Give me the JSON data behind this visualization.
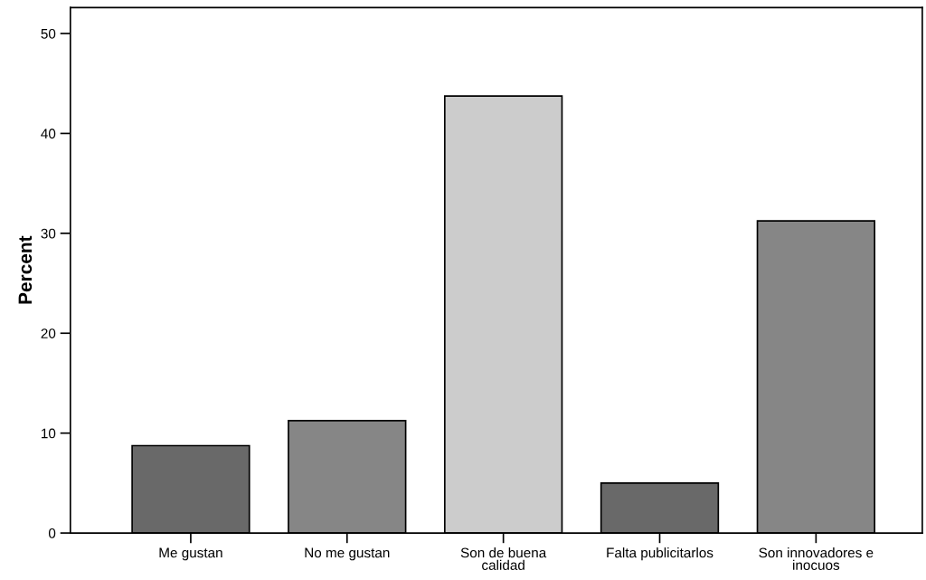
{
  "chart_data": {
    "type": "bar",
    "ylabel": "Percent",
    "categories": [
      "Me gustan",
      "No me gustan",
      "Son de buena\ncalidad",
      "Falta publicitarlos",
      "Son innovadores e\ninocuos"
    ],
    "values": [
      8.75,
      11.25,
      43.75,
      5.0,
      31.25
    ],
    "colors": [
      "#696969",
      "#868686",
      "#cccccc",
      "#696969",
      "#868686"
    ],
    "ylim": [
      0,
      52.6
    ],
    "yticks": [
      0,
      10,
      20,
      30,
      40,
      50
    ],
    "grid": false
  }
}
